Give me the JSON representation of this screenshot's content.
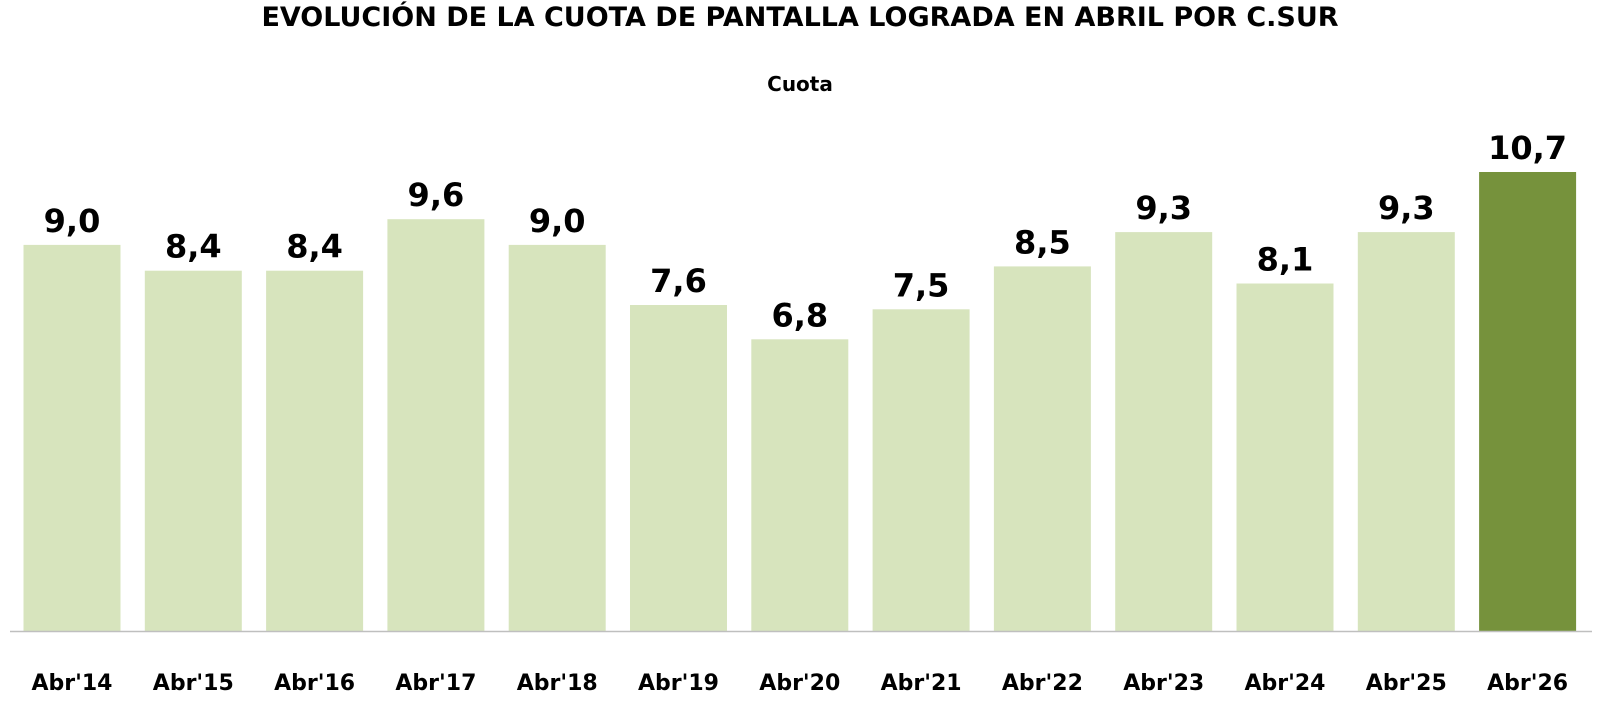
{
  "chart_data": {
    "type": "bar",
    "title": "EVOLUCIÓN DE LA CUOTA DE PANTALLA LOGRADA EN ABRIL POR C.SUR",
    "subtitle": "Cuota",
    "series_name": "Cuota",
    "categories": [
      "Abr'14",
      "Abr'15",
      "Abr'16",
      "Abr'17",
      "Abr'18",
      "Abr'19",
      "Abr'20",
      "Abr'21",
      "Abr'22",
      "Abr'23",
      "Abr'24",
      "Abr'25",
      "Abr'26"
    ],
    "values": [
      9.0,
      8.4,
      8.4,
      9.6,
      9.0,
      7.6,
      6.8,
      7.5,
      8.5,
      9.3,
      8.1,
      9.3,
      10.7
    ],
    "value_labels": [
      "9,0",
      "8,4",
      "8,4",
      "9,6",
      "9,0",
      "7,6",
      "6,8",
      "7,5",
      "8,5",
      "9,3",
      "8,1",
      "9,3",
      "10,7"
    ],
    "ylim": [
      0,
      10.7
    ],
    "grid": false,
    "legend": "none",
    "colors": {
      "bar": "#d7e4bd",
      "highlight_bar": "#76923c",
      "axis_line": "#bfbfbf"
    },
    "highlight_index": 12
  }
}
